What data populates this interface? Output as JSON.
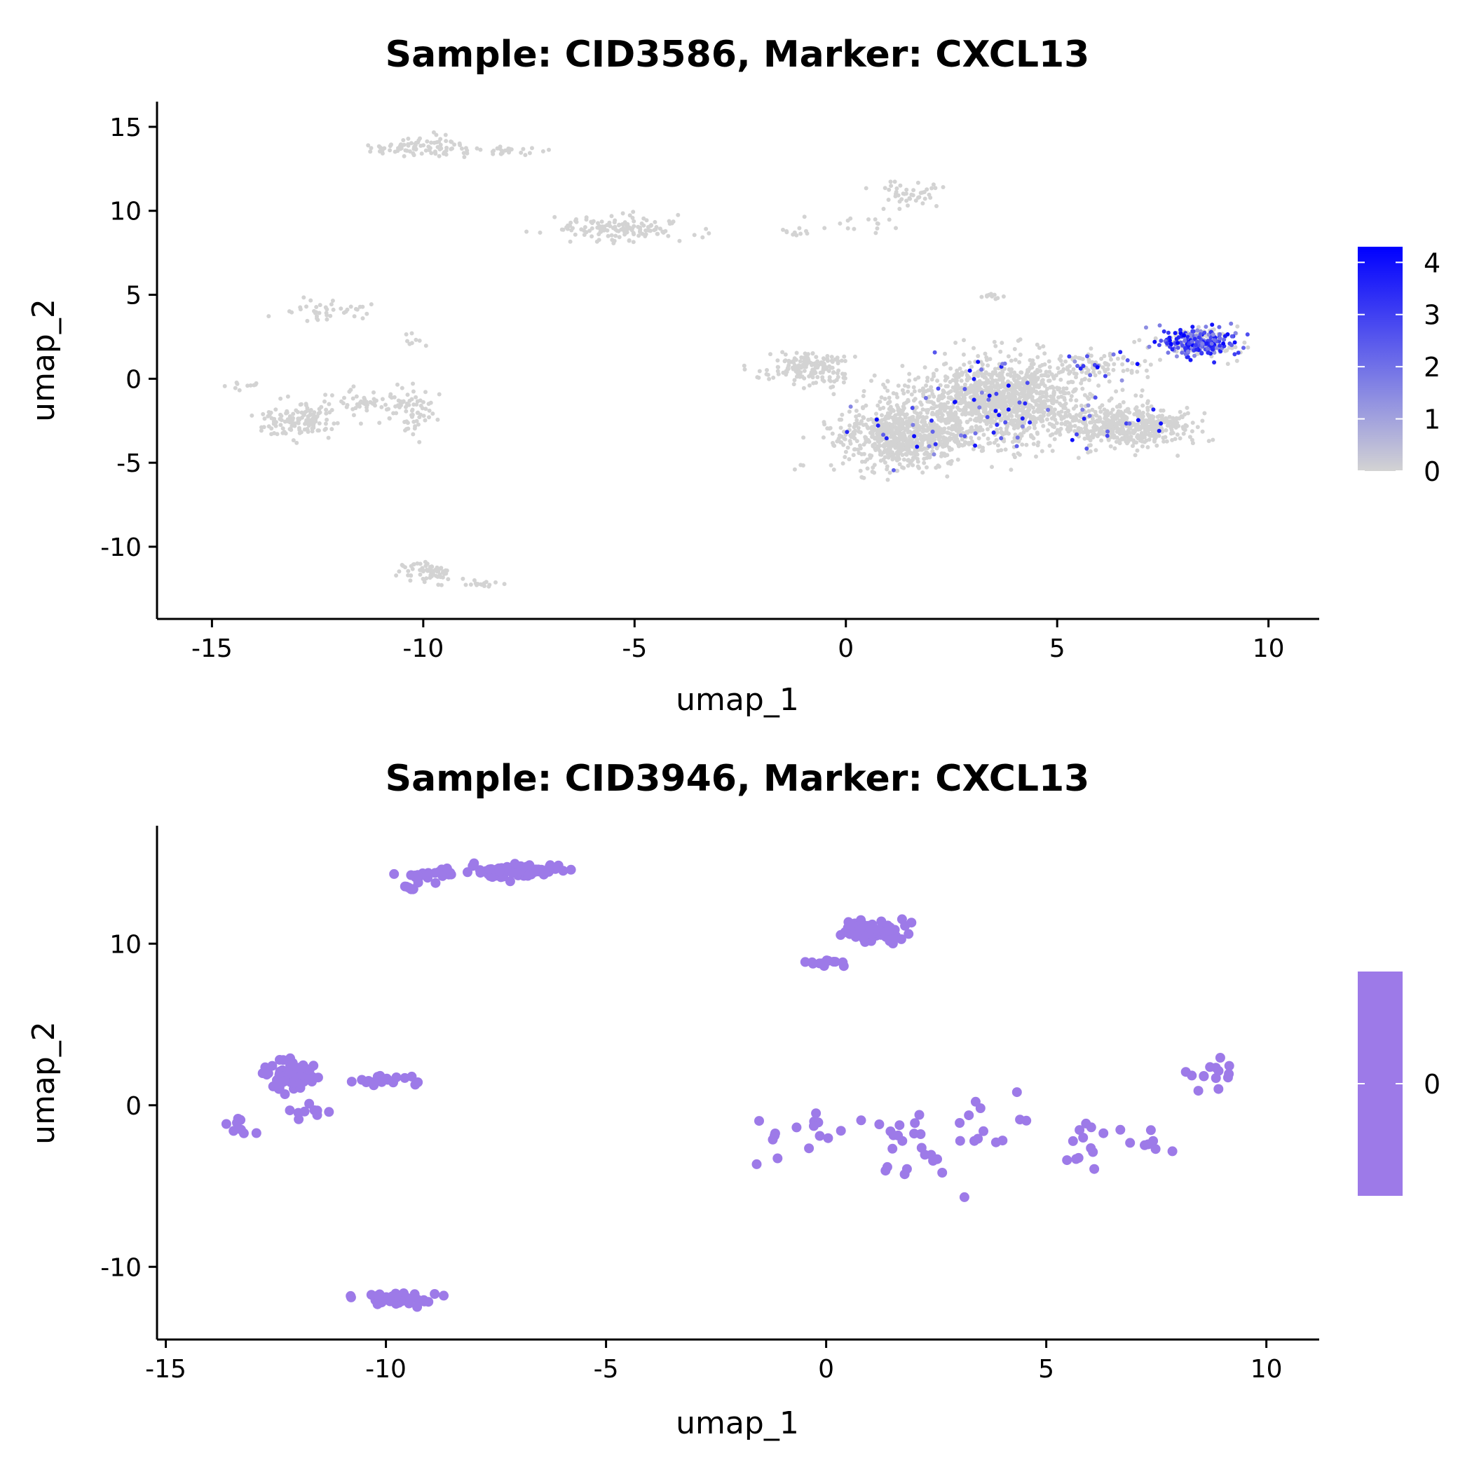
{
  "colors": {
    "low": "#d3d3d3",
    "high": "#0000ff",
    "uniform": "#9d7ae8",
    "axis": "#000000"
  },
  "chart_data": [
    {
      "type": "scatter",
      "title": "Sample: CID3586, Marker: CXCL13",
      "xlabel": "umap_1",
      "ylabel": "umap_2",
      "xlim": [
        -16.3,
        11.2
      ],
      "ylim": [
        -14.3,
        16.5
      ],
      "xticks": [
        -15,
        -10,
        -5,
        0,
        5,
        10
      ],
      "xtick_labels": [
        "-15",
        "-10",
        "-5",
        "0",
        "5",
        "10"
      ],
      "yticks": [
        -10,
        -5,
        0,
        5,
        10,
        15
      ],
      "ytick_labels": [
        "-10",
        "-5",
        "0",
        "5",
        "10",
        "15"
      ],
      "point_style": "small",
      "legend": {
        "type": "colorbar",
        "position": "right",
        "min": 0,
        "max": 4.3,
        "ticks": [
          0,
          1,
          2,
          3,
          4
        ],
        "tick_labels": [
          "0",
          "1",
          "2",
          "3",
          "4"
        ]
      },
      "clusters": [
        {
          "cx": -10.0,
          "cy": 13.8,
          "sx": 1.0,
          "sy": 0.5,
          "n": 90,
          "expr": 0
        },
        {
          "cx": -8.0,
          "cy": 13.6,
          "sx": 0.7,
          "sy": 0.3,
          "n": 25,
          "expr": 0
        },
        {
          "cx": -5.3,
          "cy": 9.0,
          "sx": 1.3,
          "sy": 0.6,
          "n": 140,
          "expr": 0
        },
        {
          "cx": 1.6,
          "cy": 11.0,
          "sx": 0.6,
          "sy": 0.7,
          "n": 45,
          "expr": 0
        },
        {
          "cx": 0.4,
          "cy": 9.2,
          "sx": 0.8,
          "sy": 0.5,
          "n": 15,
          "expr": 0
        },
        {
          "cx": -1.1,
          "cy": 8.7,
          "sx": 0.5,
          "sy": 0.2,
          "n": 10,
          "expr": 0
        },
        {
          "cx": -12.3,
          "cy": 4.0,
          "sx": 0.9,
          "sy": 0.4,
          "n": 40,
          "expr": 0
        },
        {
          "cx": -10.2,
          "cy": 2.2,
          "sx": 0.3,
          "sy": 0.4,
          "n": 8,
          "expr": 0
        },
        {
          "cx": -13.0,
          "cy": -2.5,
          "sx": 0.8,
          "sy": 0.8,
          "n": 130,
          "expr": 0
        },
        {
          "cx": -11.3,
          "cy": -1.5,
          "sx": 0.9,
          "sy": 0.6,
          "n": 60,
          "expr": 0
        },
        {
          "cx": -10.3,
          "cy": -1.8,
          "sx": 0.5,
          "sy": 1.2,
          "n": 60,
          "expr": 0
        },
        {
          "cx": -14.3,
          "cy": -0.4,
          "sx": 0.3,
          "sy": 0.3,
          "n": 10,
          "expr": 0
        },
        {
          "cx": -9.9,
          "cy": -11.5,
          "sx": 0.6,
          "sy": 0.5,
          "n": 70,
          "expr": 0
        },
        {
          "cx": -8.5,
          "cy": -12.2,
          "sx": 0.4,
          "sy": 0.2,
          "n": 15,
          "expr": 0
        },
        {
          "cx": 3.4,
          "cy": 4.9,
          "sx": 0.3,
          "sy": 0.2,
          "n": 10,
          "expr": 0
        },
        {
          "cx": -0.9,
          "cy": 0.7,
          "sx": 0.9,
          "sy": 0.8,
          "n": 170,
          "expr": 0
        },
        {
          "cx": 1.3,
          "cy": -3.5,
          "sx": 1.3,
          "sy": 1.5,
          "n": 750,
          "expr": 0.03
        },
        {
          "cx": 3.7,
          "cy": -1.3,
          "sx": 1.7,
          "sy": 2.0,
          "n": 1300,
          "expr": 0.03
        },
        {
          "cx": 6.7,
          "cy": -2.8,
          "sx": 1.2,
          "sy": 1.0,
          "n": 500,
          "expr": 0.02
        },
        {
          "cx": 6.0,
          "cy": 0.8,
          "sx": 1.0,
          "sy": 0.6,
          "n": 90,
          "expr": 0.15
        },
        {
          "cx": 8.3,
          "cy": 2.2,
          "sx": 0.8,
          "sy": 0.7,
          "n": 320,
          "expr": 0.6
        }
      ]
    },
    {
      "type": "scatter",
      "title": "Sample: CID3946, Marker: CXCL13",
      "xlabel": "umap_1",
      "ylabel": "umap_2",
      "xlim": [
        -15.2,
        11.2
      ],
      "ylim": [
        -14.5,
        17.3
      ],
      "xticks": [
        -15,
        -10,
        -5,
        0,
        5,
        10
      ],
      "xtick_labels": [
        "-15",
        "-10",
        "-5",
        "0",
        "5",
        "10"
      ],
      "yticks": [
        -10,
        0,
        10
      ],
      "ytick_labels": [
        "-10",
        "0",
        "10"
      ],
      "point_style": "large",
      "legend": {
        "type": "colorbar",
        "position": "right",
        "ticks": [
          0
        ],
        "tick_labels": [
          "0"
        ]
      },
      "clusters": [
        {
          "cx": -7.0,
          "cy": 14.5,
          "sx": 0.9,
          "sy": 0.4,
          "n": 110,
          "expr": 0
        },
        {
          "cx": -9.0,
          "cy": 14.2,
          "sx": 0.5,
          "sy": 0.3,
          "n": 20,
          "expr": 0
        },
        {
          "cx": -9.5,
          "cy": 13.5,
          "sx": 0.2,
          "sy": 0.2,
          "n": 6,
          "expr": 0
        },
        {
          "cx": 1.1,
          "cy": 10.8,
          "sx": 0.6,
          "sy": 0.6,
          "n": 70,
          "expr": 0
        },
        {
          "cx": 0.0,
          "cy": 8.8,
          "sx": 0.4,
          "sy": 0.2,
          "n": 12,
          "expr": 0
        },
        {
          "cx": -12.2,
          "cy": 1.8,
          "sx": 0.5,
          "sy": 0.7,
          "n": 70,
          "expr": 0
        },
        {
          "cx": -10.0,
          "cy": 1.5,
          "sx": 0.6,
          "sy": 0.3,
          "n": 20,
          "expr": 0
        },
        {
          "cx": -13.3,
          "cy": -1.5,
          "sx": 0.4,
          "sy": 0.5,
          "n": 8,
          "expr": 0
        },
        {
          "cx": -11.8,
          "cy": -0.5,
          "sx": 0.5,
          "sy": 0.5,
          "n": 10,
          "expr": 0
        },
        {
          "cx": -9.7,
          "cy": -12.0,
          "sx": 0.6,
          "sy": 0.3,
          "n": 60,
          "expr": 0
        },
        {
          "cx": -0.5,
          "cy": -2.0,
          "sx": 0.9,
          "sy": 1.6,
          "n": 15,
          "expr": 0
        },
        {
          "cx": 1.8,
          "cy": -2.5,
          "sx": 0.8,
          "sy": 2.2,
          "n": 20,
          "expr": 0
        },
        {
          "cx": 3.5,
          "cy": -2.0,
          "sx": 1.0,
          "sy": 2.4,
          "n": 15,
          "expr": 0
        },
        {
          "cx": 6.0,
          "cy": -2.0,
          "sx": 0.8,
          "sy": 2.0,
          "n": 15,
          "expr": 0
        },
        {
          "cx": 7.4,
          "cy": -2.5,
          "sx": 0.3,
          "sy": 0.8,
          "n": 6,
          "expr": 0
        },
        {
          "cx": 8.7,
          "cy": 1.8,
          "sx": 0.5,
          "sy": 0.8,
          "n": 14,
          "expr": 0
        }
      ]
    }
  ]
}
